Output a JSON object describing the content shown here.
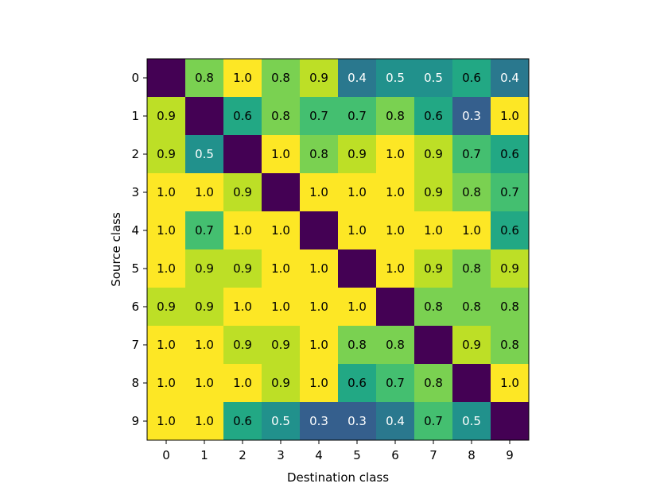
{
  "chart_data": {
    "type": "heatmap",
    "title": "",
    "xlabel": "Destination class",
    "ylabel": "Source class",
    "x_categories": [
      "0",
      "1",
      "2",
      "3",
      "4",
      "5",
      "6",
      "7",
      "8",
      "9"
    ],
    "y_categories": [
      "0",
      "1",
      "2",
      "3",
      "4",
      "5",
      "6",
      "7",
      "8",
      "9"
    ],
    "colormap": "viridis",
    "value_range": [
      0.0,
      1.0
    ],
    "grid": false,
    "values": [
      [
        null,
        0.8,
        1.0,
        0.8,
        0.9,
        0.4,
        0.5,
        0.5,
        0.6,
        0.4
      ],
      [
        0.9,
        null,
        0.6,
        0.8,
        0.7,
        0.7,
        0.8,
        0.6,
        0.3,
        1.0
      ],
      [
        0.9,
        0.5,
        null,
        1.0,
        0.8,
        0.9,
        1.0,
        0.9,
        0.7,
        0.6
      ],
      [
        1.0,
        1.0,
        0.9,
        null,
        1.0,
        1.0,
        1.0,
        0.9,
        0.8,
        0.7
      ],
      [
        1.0,
        0.7,
        1.0,
        1.0,
        null,
        1.0,
        1.0,
        1.0,
        1.0,
        0.6
      ],
      [
        1.0,
        0.9,
        0.9,
        1.0,
        1.0,
        null,
        1.0,
        0.9,
        0.8,
        0.9
      ],
      [
        0.9,
        0.9,
        1.0,
        1.0,
        1.0,
        1.0,
        null,
        0.8,
        0.8,
        0.8
      ],
      [
        1.0,
        1.0,
        0.9,
        0.9,
        1.0,
        0.8,
        0.8,
        null,
        0.9,
        0.8
      ],
      [
        1.0,
        1.0,
        1.0,
        0.9,
        1.0,
        0.6,
        0.7,
        0.8,
        null,
        1.0
      ],
      [
        1.0,
        1.0,
        0.6,
        0.5,
        0.3,
        0.3,
        0.4,
        0.7,
        0.5,
        null
      ]
    ],
    "diagonal_color": "#440154"
  }
}
